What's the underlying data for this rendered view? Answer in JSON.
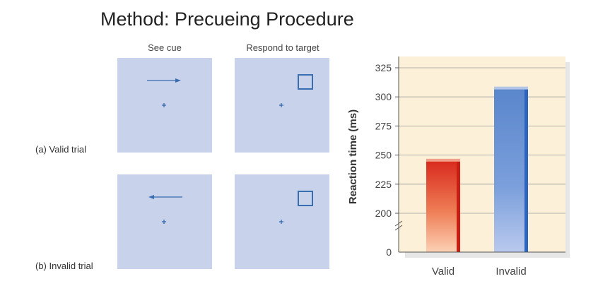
{
  "title": "Method: Precueing Procedure",
  "columns": {
    "cue": "See cue",
    "respond": "Respond to target"
  },
  "trials": [
    {
      "label": "(a) Valid trial",
      "cue_direction": "right",
      "target_side": "right"
    },
    {
      "label": "(b) Invalid trial",
      "cue_direction": "left",
      "target_side": "right"
    }
  ],
  "colors": {
    "panel": "#c8d2ea",
    "stimulus": "#3a6db0",
    "chart_bg": "#fdf0d8",
    "valid_bar": "#d93025",
    "invalid_bar": "#5a86cc"
  },
  "chart_data": {
    "type": "bar",
    "categories": [
      "Valid",
      "Invalid"
    ],
    "values": [
      245,
      307
    ],
    "ylabel": "Reaction time (ms)",
    "xlabel": "",
    "ylim": [
      200,
      325
    ],
    "yticks": [
      325,
      300,
      275,
      250,
      225,
      200
    ],
    "baseline_label": "0",
    "axis_break": true,
    "grid": true
  }
}
